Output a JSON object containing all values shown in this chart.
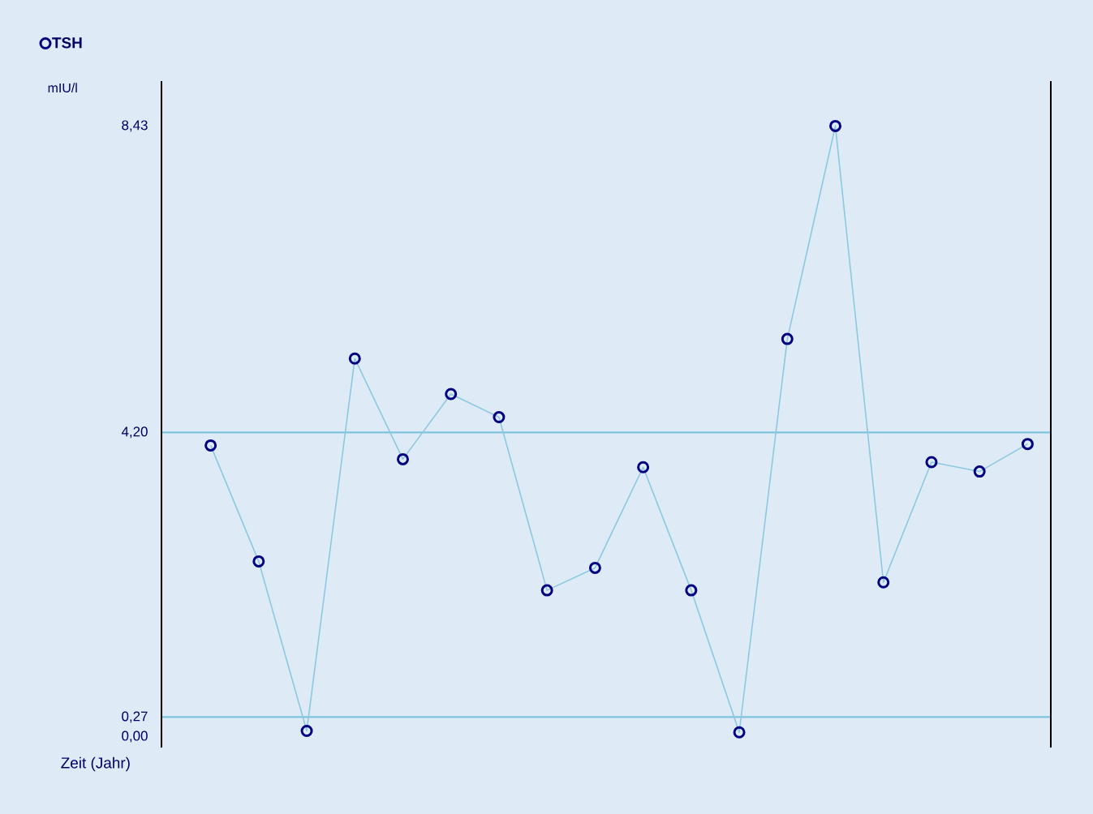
{
  "chart_data": {
    "type": "line",
    "xlabel": "Zeit (Jahr)",
    "ylabel": "mIU/l",
    "categories": [
      null,
      null,
      null,
      null,
      null,
      null,
      null,
      null,
      null,
      null,
      null,
      null,
      null,
      null,
      null,
      null,
      null,
      null
    ],
    "series": [
      {
        "name": "TSH",
        "color": "#8cc8e0",
        "colors": [
          "#000080",
          "#000080",
          "#000080",
          "#000080",
          "#000080",
          "#000080",
          "#000080",
          "#000080",
          "#000080",
          "#000080",
          "#000080",
          "#000080",
          "#000080",
          "#000080",
          "#000080",
          "#000080",
          "#000080",
          "#000080"
        ],
        "values": [
          4.02,
          2.42,
          0.08,
          5.22,
          3.83,
          4.73,
          4.41,
          2.02,
          2.33,
          3.72,
          2.02,
          0.06,
          5.49,
          8.43,
          2.13,
          3.79,
          3.66,
          4.04
        ]
      }
    ],
    "ylim": [
      -0.15,
      9.05
    ],
    "yticks": [
      {
        "value": 0,
        "label": "0,00"
      },
      {
        "value": 0.27,
        "label": "0,27"
      },
      {
        "value": 4.2,
        "label": "4,20"
      },
      {
        "value": 8.43,
        "label": "8,43"
      }
    ],
    "ref_lines": [
      {
        "axis": "y",
        "value": 0.27,
        "color": "#7ec3dd"
      },
      {
        "axis": "y",
        "value": 4.2,
        "color": "#7ec3dd"
      }
    ],
    "legend": "top left",
    "marker": "circle",
    "line_style": "solid"
  }
}
